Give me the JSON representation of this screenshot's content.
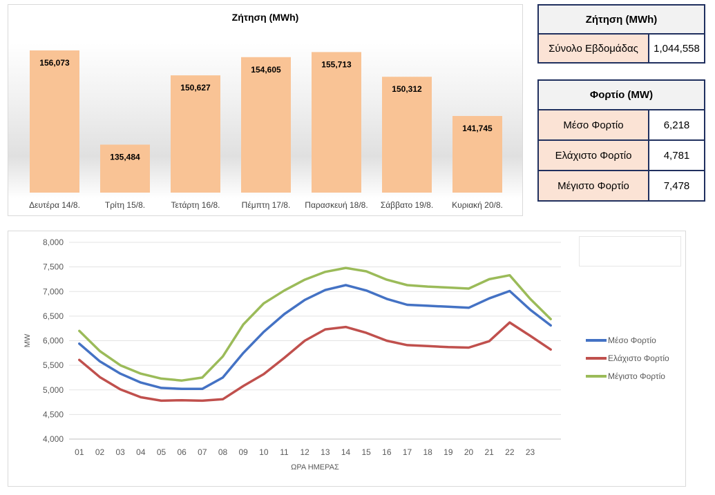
{
  "bar_chart": {
    "title": "Ζήτηση (MWh)"
  },
  "demand_table": {
    "header": "Ζήτηση (MWh)",
    "row_label": "Σύνολο Εβδομάδας",
    "row_value": "1,044,558"
  },
  "load_table": {
    "header": "Φορτίο (MW)",
    "rows": [
      {
        "label": "Μέσο Φορτίο",
        "value": "6,218"
      },
      {
        "label": "Ελάχιστο Φορτίο",
        "value": "4,781"
      },
      {
        "label": "Μέγιστο Φορτίο",
        "value": "7,478"
      }
    ]
  },
  "chart_data": [
    {
      "type": "bar",
      "title": "Ζήτηση (MWh)",
      "categories": [
        "Δευτέρα 14/8.",
        "Τρίτη 15/8.",
        "Τετάρτη 16/8.",
        "Πέμπτη 17/8.",
        "Παρασκευή 18/8.",
        "Σάββατο 19/8.",
        "Κυριακή 20/8."
      ],
      "values": [
        156073,
        135484,
        150627,
        154605,
        155713,
        150312,
        141745
      ],
      "value_labels": [
        "156,073",
        "135,484",
        "150,627",
        "154,605",
        "155,713",
        "150,312",
        "141,745"
      ],
      "color": "#f9c395",
      "ylim": [
        125000,
        160000
      ]
    },
    {
      "type": "line",
      "xlabel": "ΩΡΑ ΗΜΕΡΑΣ",
      "ylabel": "MW",
      "x": [
        "01",
        "02",
        "03",
        "04",
        "05",
        "06",
        "07",
        "08",
        "09",
        "10",
        "11",
        "12",
        "13",
        "14",
        "15",
        "16",
        "17",
        "18",
        "19",
        "20",
        "21",
        "22",
        "23",
        "24"
      ],
      "x_tick_labels": [
        "01",
        "02",
        "03",
        "04",
        "05",
        "06",
        "07",
        "08",
        "09",
        "10",
        "11",
        "12",
        "13",
        "14",
        "15",
        "16",
        "17",
        "18",
        "19",
        "20",
        "21",
        "22",
        "23",
        ""
      ],
      "ylim": [
        4000,
        8000
      ],
      "yticks": [
        4000,
        4500,
        5000,
        5500,
        6000,
        6500,
        7000,
        7500,
        8000
      ],
      "ytick_labels": [
        "4,000",
        "4,500",
        "5,000",
        "5,500",
        "6,000",
        "6,500",
        "7,000",
        "7,500",
        "8,000"
      ],
      "grid": true,
      "legend": "right",
      "series": [
        {
          "name": "Μέσο Φορτίο",
          "color": "#4472c4",
          "values": [
            5940,
            5580,
            5330,
            5150,
            5040,
            5020,
            5020,
            5250,
            5750,
            6180,
            6540,
            6830,
            7030,
            7130,
            7020,
            6850,
            6730,
            6710,
            6690,
            6670,
            6860,
            7010,
            6630,
            6310
          ]
        },
        {
          "name": "Ελάχιστο Φορτίο",
          "color": "#c0504d",
          "values": [
            5610,
            5260,
            5010,
            4850,
            4780,
            4790,
            4780,
            4810,
            5080,
            5320,
            5650,
            6000,
            6230,
            6280,
            6160,
            6000,
            5910,
            5890,
            5870,
            5860,
            5990,
            6370,
            6100,
            5820
          ]
        },
        {
          "name": "Μέγιστο Φορτίο",
          "color": "#9bbb59",
          "values": [
            6200,
            5790,
            5500,
            5330,
            5230,
            5190,
            5250,
            5680,
            6330,
            6760,
            7020,
            7240,
            7400,
            7480,
            7410,
            7240,
            7130,
            7100,
            7080,
            7060,
            7250,
            7330,
            6850,
            6440
          ]
        }
      ]
    }
  ]
}
